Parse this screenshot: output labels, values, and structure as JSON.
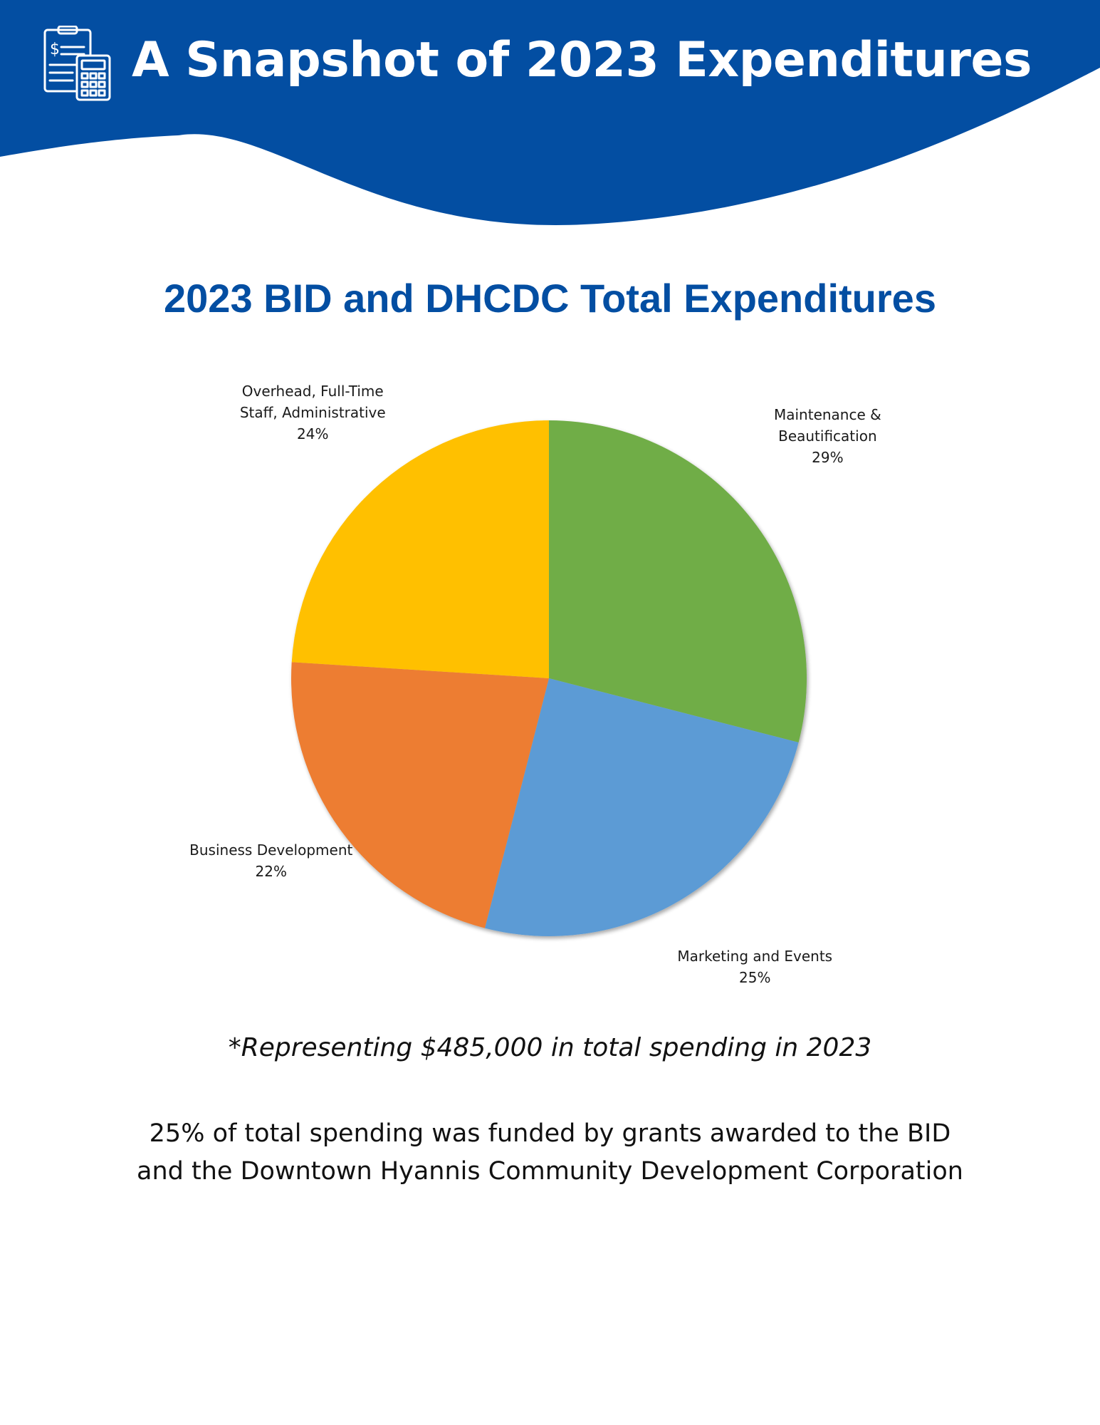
{
  "header": {
    "title": "A Snapshot of 2023 Expenditures",
    "icon": "clipboard-calculator-icon"
  },
  "colors": {
    "brand_blue": "#034EA2",
    "title_blue": "#034EA2"
  },
  "chart_data": {
    "type": "pie",
    "title": "2023 BID and DHCDC Total Expenditures",
    "slices": [
      {
        "label_lines": [
          "Maintenance &",
          "Beautification"
        ],
        "value": 29,
        "value_label": "29%",
        "color": "#70AD47"
      },
      {
        "label_lines": [
          "Marketing and Events"
        ],
        "value": 25,
        "value_label": "25%",
        "color": "#5B9BD5"
      },
      {
        "label_lines": [
          "Business Development"
        ],
        "value": 22,
        "value_label": "22%",
        "color": "#ED7D31"
      },
      {
        "label_lines": [
          "Overhead, Full-Time",
          "Staff, Administrative"
        ],
        "value": 24,
        "value_label": "24%",
        "color": "#FFC000"
      }
    ],
    "start_angle": "12 o'clock",
    "direction": "clockwise",
    "legend": "none"
  },
  "note": "*Representing $485,000 in total spending in 2023",
  "grants": {
    "line1": "25% of total spending was funded by grants awarded to the BID",
    "line2": "and the Downtown Hyannis Community Development Corporation"
  }
}
